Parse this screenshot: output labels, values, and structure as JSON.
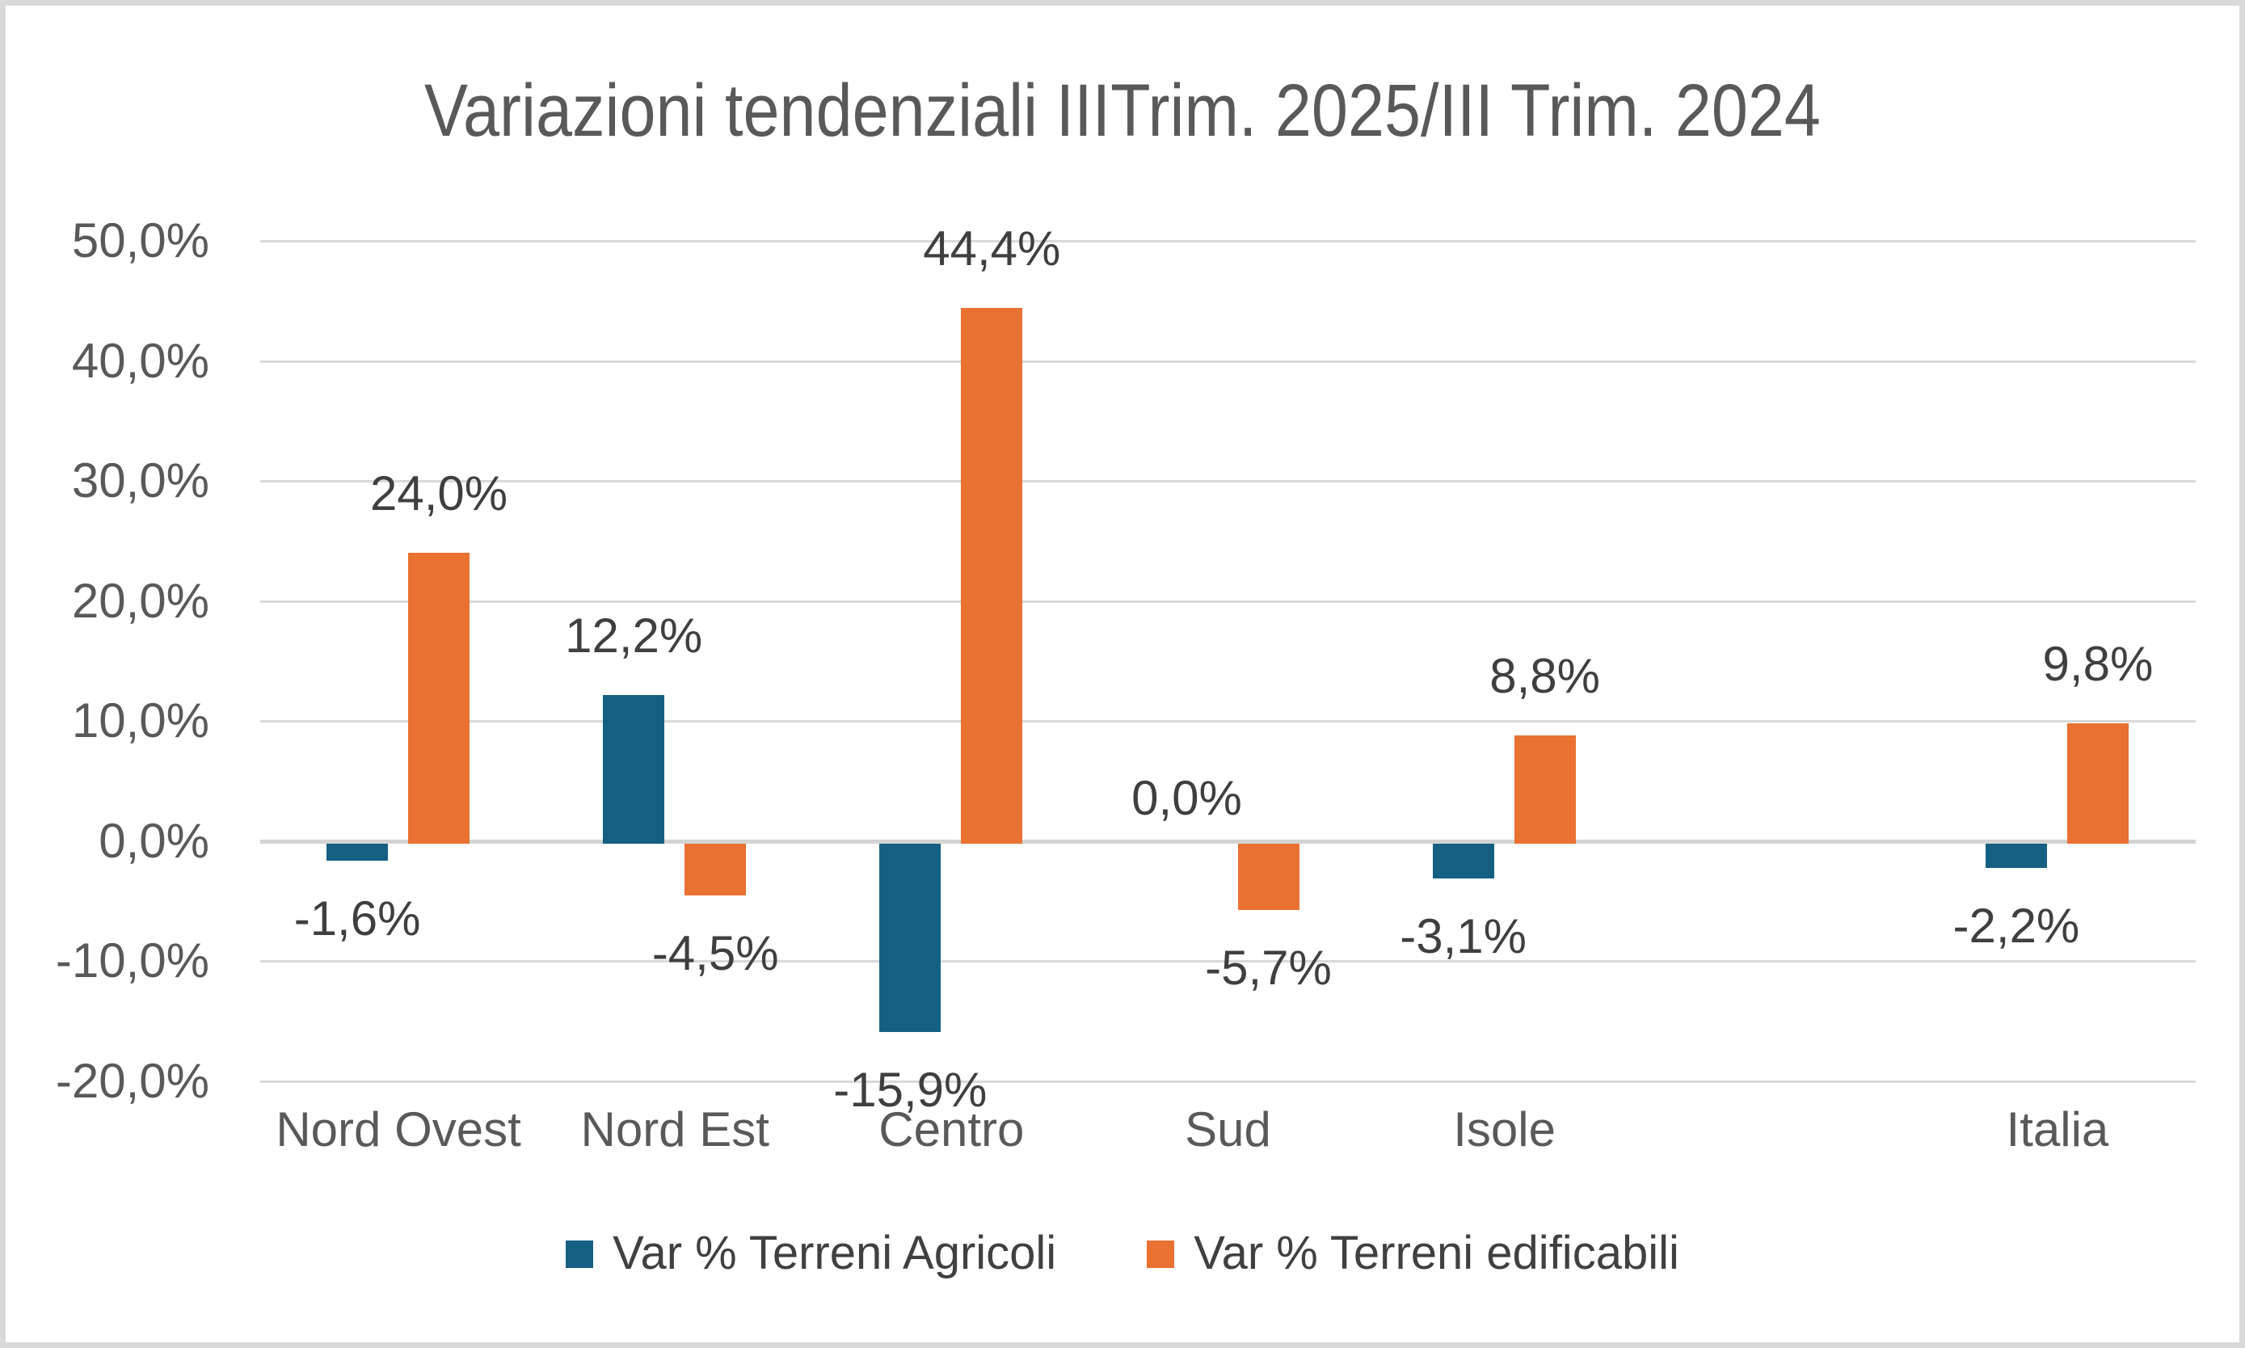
{
  "frame": {
    "background_color": "#FFFFFF",
    "border_color": "#D9D9D9"
  },
  "chart_data": {
    "type": "bar",
    "title": "Variazioni tendenziali IIITrim. 2025/III Trim. 2024",
    "categories": [
      "Nord Ovest",
      "Nord Est",
      "Centro",
      "Sud",
      "Isole",
      "",
      "Italia"
    ],
    "series": [
      {
        "name": "Var % Terreni Agricoli",
        "color": "#156082",
        "values": [
          -1.6,
          12.2,
          -15.9,
          0.0,
          -3.1,
          null,
          -2.2
        ],
        "labels": [
          "-1,6%",
          "12,2%",
          "-15,9%",
          "0,0%",
          "-3,1%",
          "",
          "-2,2%"
        ]
      },
      {
        "name": "Var % Terreni edificabili",
        "color": "#E97132",
        "values": [
          24.0,
          -4.5,
          44.4,
          -5.7,
          8.8,
          null,
          9.8
        ],
        "labels": [
          "24,0%",
          "-4,5%",
          "44,4%",
          "-5,7%",
          "8,8%",
          "",
          "9,8%"
        ]
      }
    ],
    "ylim": [
      -20,
      50
    ],
    "ytick_step": 10,
    "ytick_labels": [
      "50,0%",
      "40,0%",
      "30,0%",
      "20,0%",
      "10,0%",
      "0,0%",
      "-10,0%",
      "-20,0%"
    ],
    "grid": "horizontal",
    "legend_position": "bottom",
    "gridline_color": "#D9D9D9",
    "zero_axis_color": "#D3D3D3",
    "title_color": "#595959",
    "axis_text_color": "#595959",
    "data_label_color": "#3F3F3F"
  }
}
